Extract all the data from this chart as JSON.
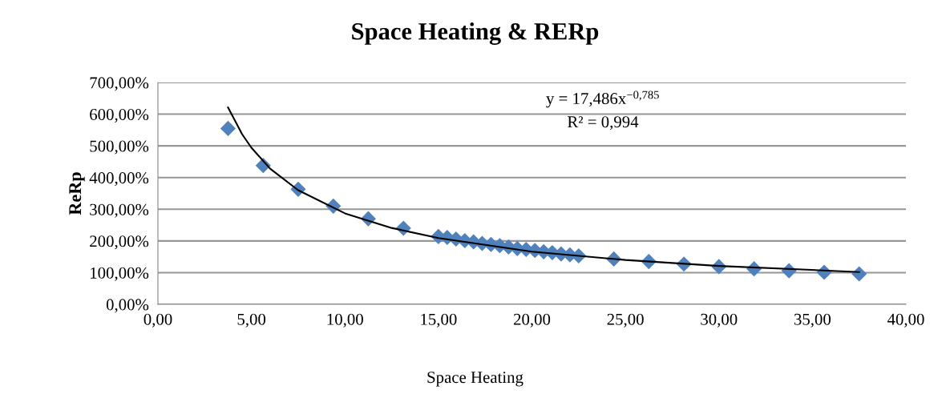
{
  "chart_data": {
    "type": "scatter",
    "title": "Space Heating & RERp",
    "xlabel": "Space Heating",
    "ylabel": "ReRp",
    "annotations": [
      "y = 17,486x$^{−0,785}$",
      "R² = 0,994"
    ],
    "series": [
      {
        "color": "#4f81bd",
        "marker": "diamond",
        "x": [
          3.75,
          5.63,
          7.5,
          9.38,
          11.25,
          13.13,
          15.0,
          15.47,
          15.94,
          16.41,
          16.88,
          17.34,
          17.81,
          18.28,
          18.75,
          19.22,
          19.69,
          20.16,
          20.63,
          21.09,
          21.56,
          22.03,
          22.5,
          24.38,
          26.25,
          28.13,
          30.0,
          31.88,
          33.75,
          35.63,
          37.5
        ],
        "values": [
          555,
          438,
          363,
          310,
          270,
          240,
          214,
          211,
          206,
          201,
          197,
          192,
          189,
          185,
          181,
          176,
          173,
          170,
          166,
          163,
          159,
          156,
          153,
          143,
          135,
          127,
          119,
          112,
          106,
          101,
          96
        ]
      },
      {
        "type": "line",
        "color": "#000000",
        "marker": "none",
        "line_style": "solid",
        "x": [
          3.75,
          4.5,
          5,
          6,
          7.5,
          10,
          12.5,
          15,
          20,
          25,
          30,
          37.5
        ],
        "values": [
          621,
          537,
          494,
          428,
          360,
          287,
          241,
          209,
          166,
          140,
          121,
          102
        ]
      }
    ],
    "xlim": [
      0,
      40
    ],
    "xticks": [
      {
        "value": 0,
        "label": "0,00"
      },
      {
        "value": 5,
        "label": "5,00"
      },
      {
        "value": 10,
        "label": "10,00"
      },
      {
        "value": 15,
        "label": "15,00"
      },
      {
        "value": 20,
        "label": "20,00"
      },
      {
        "value": 25,
        "label": "25,00"
      },
      {
        "value": 30,
        "label": "30,00"
      },
      {
        "value": 35,
        "label": "35,00"
      },
      {
        "value": 40,
        "label": "40,00"
      }
    ],
    "ylim": [
      0,
      700
    ],
    "yticks": [
      {
        "value": 0,
        "label": "0,00%"
      },
      {
        "value": 100,
        "label": "100,00%"
      },
      {
        "value": 200,
        "label": "200,00%"
      },
      {
        "value": 300,
        "label": "300,00%"
      },
      {
        "value": 400,
        "label": "400,00%"
      },
      {
        "value": 500,
        "label": "500,00%"
      },
      {
        "value": 600,
        "label": "600,00%"
      },
      {
        "value": 700,
        "label": "700,00%"
      }
    ],
    "grid": "y",
    "legend": false
  }
}
